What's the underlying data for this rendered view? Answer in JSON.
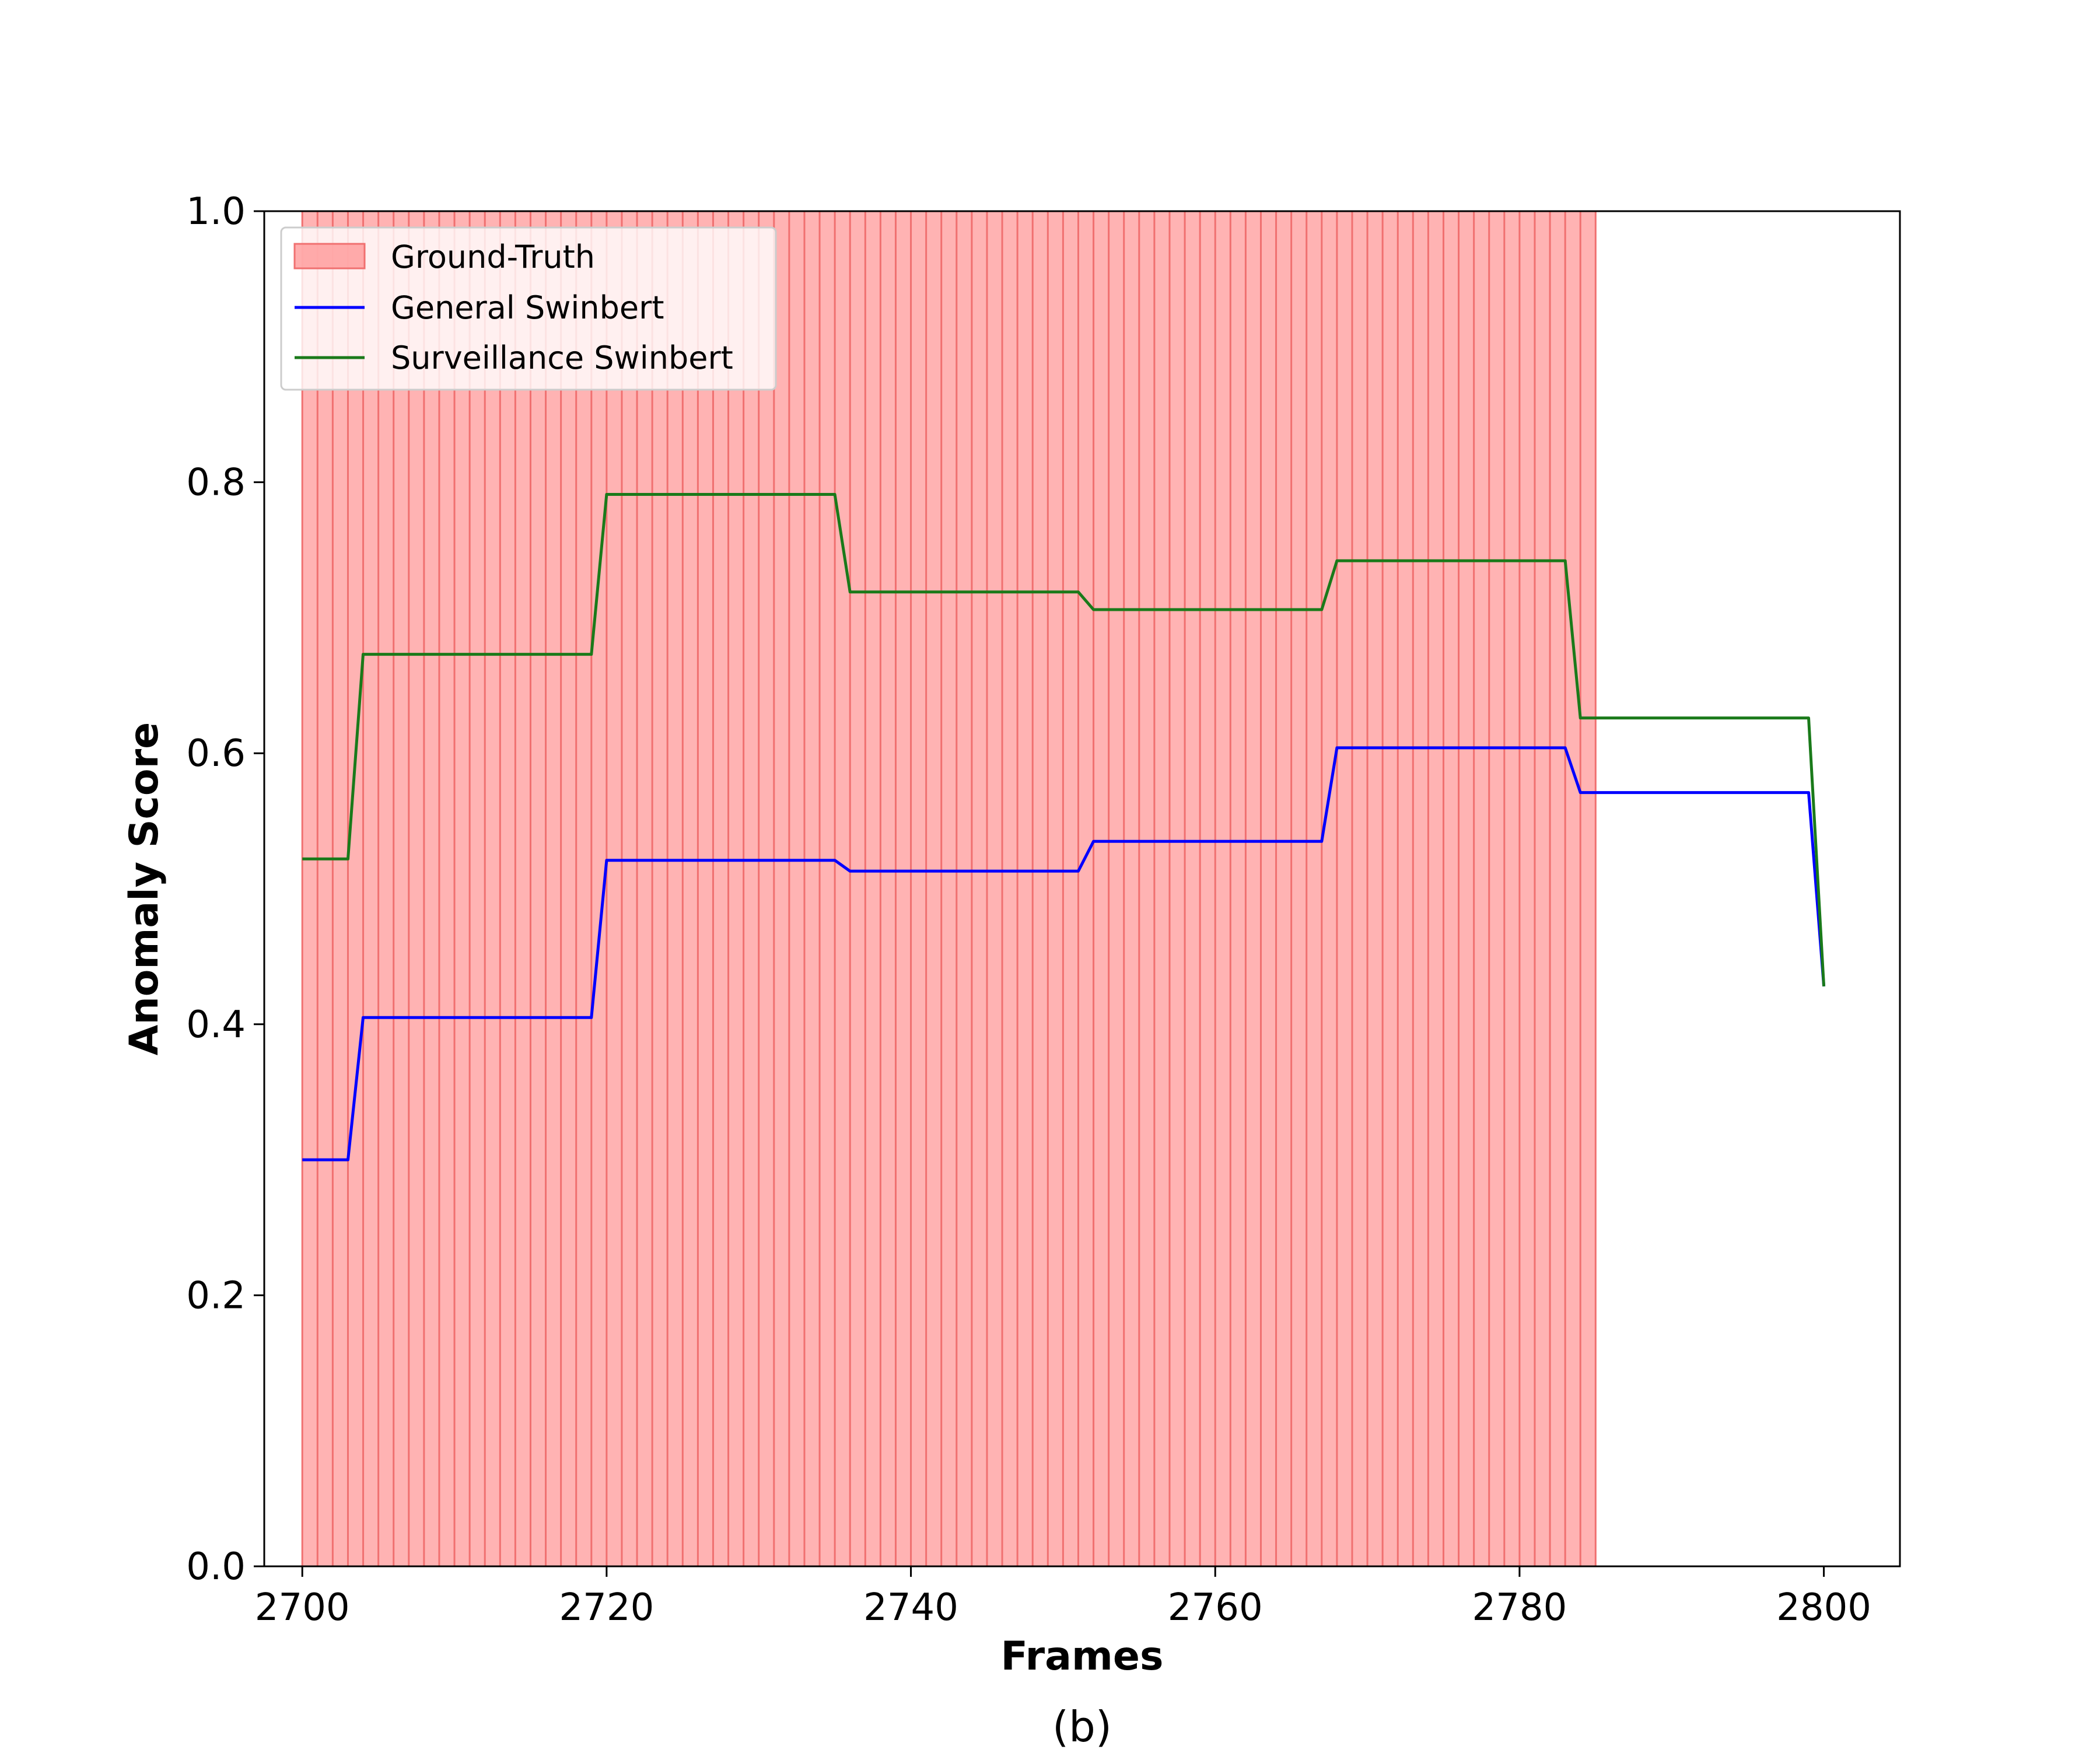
{
  "chart_data": {
    "type": "line",
    "caption": "(b)",
    "xlabel": "Frames",
    "ylabel": "Anomaly Score",
    "xlim": [
      2697.5,
      2805
    ],
    "ylim": [
      0,
      1
    ],
    "x_ticks": [
      2700,
      2720,
      2740,
      2760,
      2780,
      2800
    ],
    "y_ticks": [
      0.0,
      0.2,
      0.4,
      0.6,
      0.8,
      1.0
    ],
    "y_tick_labels": [
      "0.0",
      "0.2",
      "0.4",
      "0.6",
      "0.8",
      "1.0"
    ],
    "grid": false,
    "legend": {
      "placement": "top-left",
      "entries": [
        {
          "label": "Ground-Truth",
          "kind": "patch",
          "color": "#ff9999"
        },
        {
          "label": "General Swinbert",
          "kind": "line",
          "color": "#0000ff"
        },
        {
          "label": "Surveillance Swinbert",
          "kind": "line",
          "color": "#1a7a1a"
        }
      ]
    },
    "ground_truth": {
      "name": "Ground-Truth",
      "x_start": 2700,
      "x_end": 2785,
      "frame_step": 1,
      "fill_color": "#ffb3b3",
      "line_color": "#f07070"
    },
    "series": [
      {
        "name": "General Swinbert",
        "color": "#0000ff",
        "points": [
          [
            2700,
            0.3
          ],
          [
            2703,
            0.3
          ],
          [
            2704,
            0.405
          ],
          [
            2719,
            0.405
          ],
          [
            2720,
            0.521
          ],
          [
            2735,
            0.521
          ],
          [
            2736,
            0.513
          ],
          [
            2751,
            0.513
          ],
          [
            2752,
            0.535
          ],
          [
            2767,
            0.535
          ],
          [
            2768,
            0.604
          ],
          [
            2783,
            0.604
          ],
          [
            2784,
            0.571
          ],
          [
            2799,
            0.571
          ],
          [
            2800,
            0.428
          ]
        ]
      },
      {
        "name": "Surveillance Swinbert",
        "color": "#1a7a1a",
        "points": [
          [
            2700,
            0.522
          ],
          [
            2703,
            0.522
          ],
          [
            2704,
            0.673
          ],
          [
            2719,
            0.673
          ],
          [
            2720,
            0.791
          ],
          [
            2735,
            0.791
          ],
          [
            2736,
            0.719
          ],
          [
            2751,
            0.719
          ],
          [
            2752,
            0.706
          ],
          [
            2767,
            0.706
          ],
          [
            2768,
            0.742
          ],
          [
            2783,
            0.742
          ],
          [
            2784,
            0.626
          ],
          [
            2799,
            0.626
          ],
          [
            2800,
            0.428
          ]
        ]
      }
    ]
  }
}
